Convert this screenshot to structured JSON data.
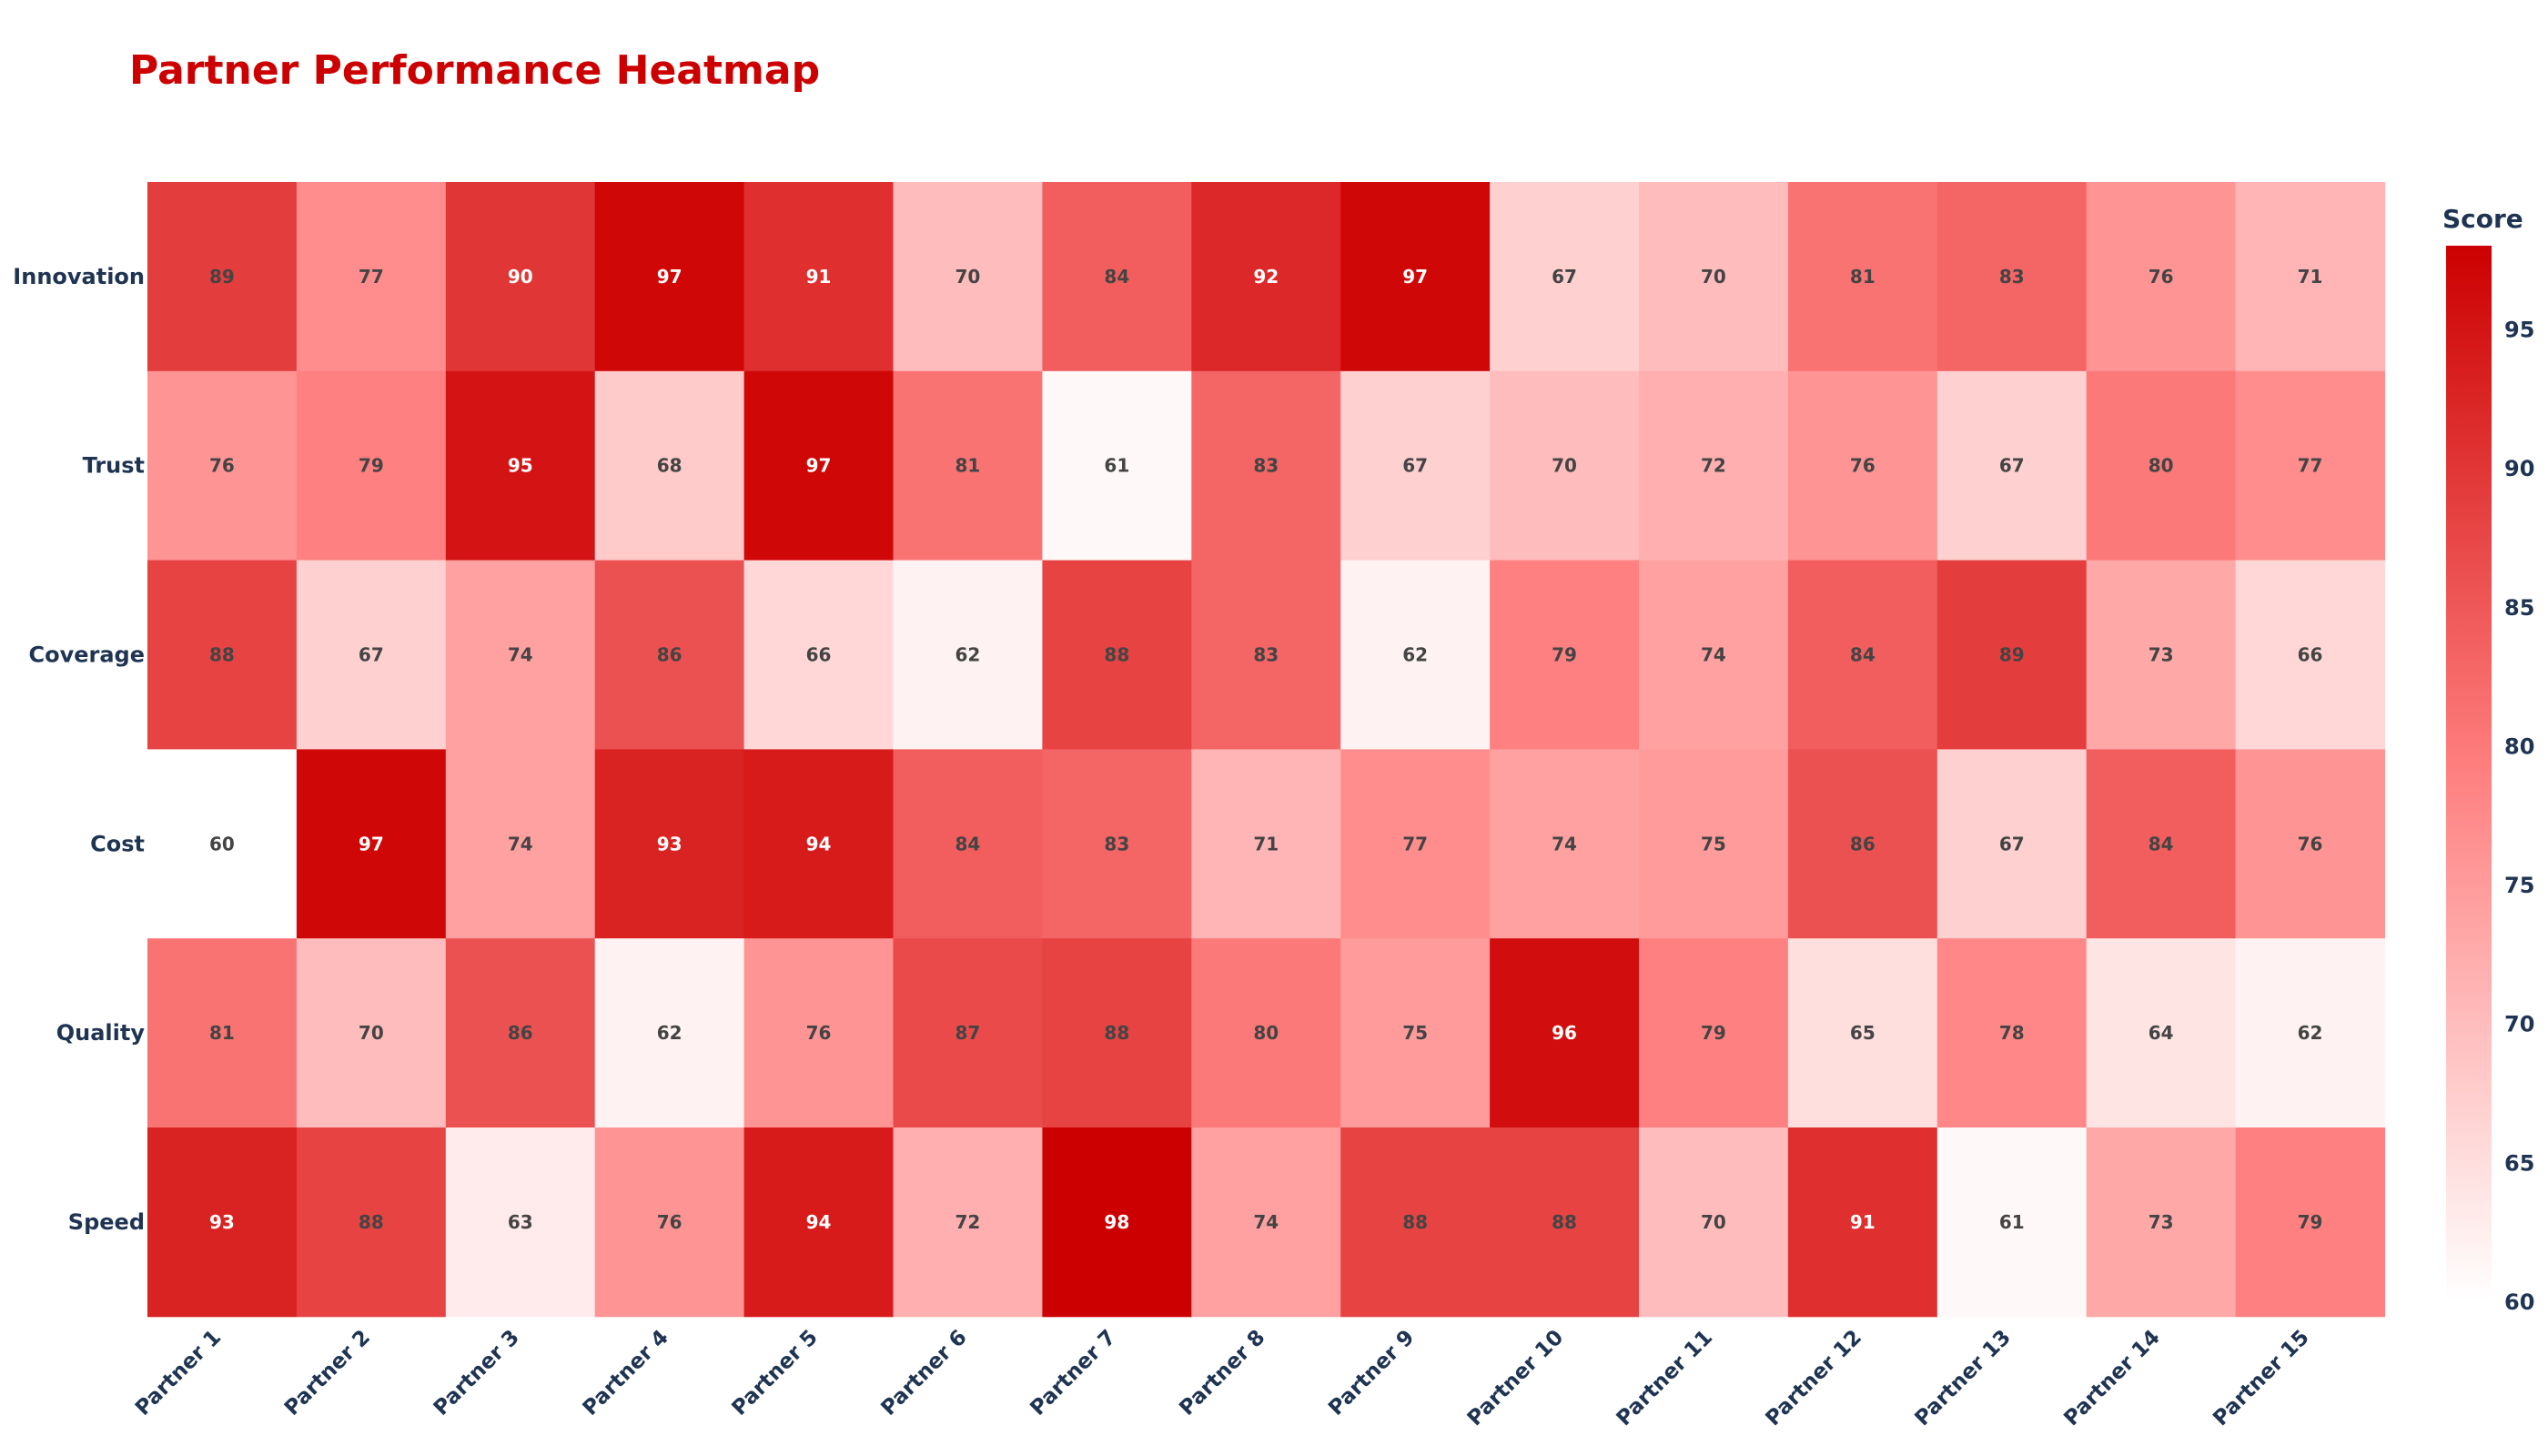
{
  "chart_data": {
    "type": "heatmap",
    "title": "Partner Performance Heatmap",
    "x_categories": [
      "Partner 1",
      "Partner 2",
      "Partner 3",
      "Partner 4",
      "Partner 5",
      "Partner 6",
      "Partner 7",
      "Partner 8",
      "Partner 9",
      "Partner 10",
      "Partner 11",
      "Partner 12",
      "Partner 13",
      "Partner 14",
      "Partner 15"
    ],
    "y_categories": [
      "Innovation",
      "Trust",
      "Coverage",
      "Cost",
      "Quality",
      "Speed"
    ],
    "values": [
      [
        89,
        77,
        90,
        97,
        91,
        70,
        84,
        92,
        97,
        67,
        70,
        81,
        83,
        76,
        71
      ],
      [
        76,
        79,
        95,
        68,
        97,
        81,
        61,
        83,
        67,
        70,
        72,
        76,
        67,
        80,
        77
      ],
      [
        88,
        67,
        74,
        86,
        66,
        62,
        88,
        83,
        62,
        79,
        74,
        84,
        89,
        73,
        66
      ],
      [
        60,
        97,
        74,
        93,
        94,
        84,
        83,
        71,
        77,
        74,
        75,
        86,
        67,
        84,
        76
      ],
      [
        81,
        70,
        86,
        62,
        76,
        87,
        88,
        80,
        75,
        96,
        79,
        65,
        78,
        64,
        62
      ],
      [
        93,
        88,
        63,
        76,
        94,
        72,
        98,
        74,
        88,
        88,
        70,
        91,
        61,
        73,
        79
      ]
    ],
    "colorbar": {
      "title": "Score",
      "range": [
        60,
        98
      ],
      "ticks": [
        60,
        65,
        70,
        75,
        80,
        85,
        90,
        95
      ]
    },
    "colorscale": [
      "#ffffff",
      "#ff8080",
      "#cc0000"
    ]
  }
}
